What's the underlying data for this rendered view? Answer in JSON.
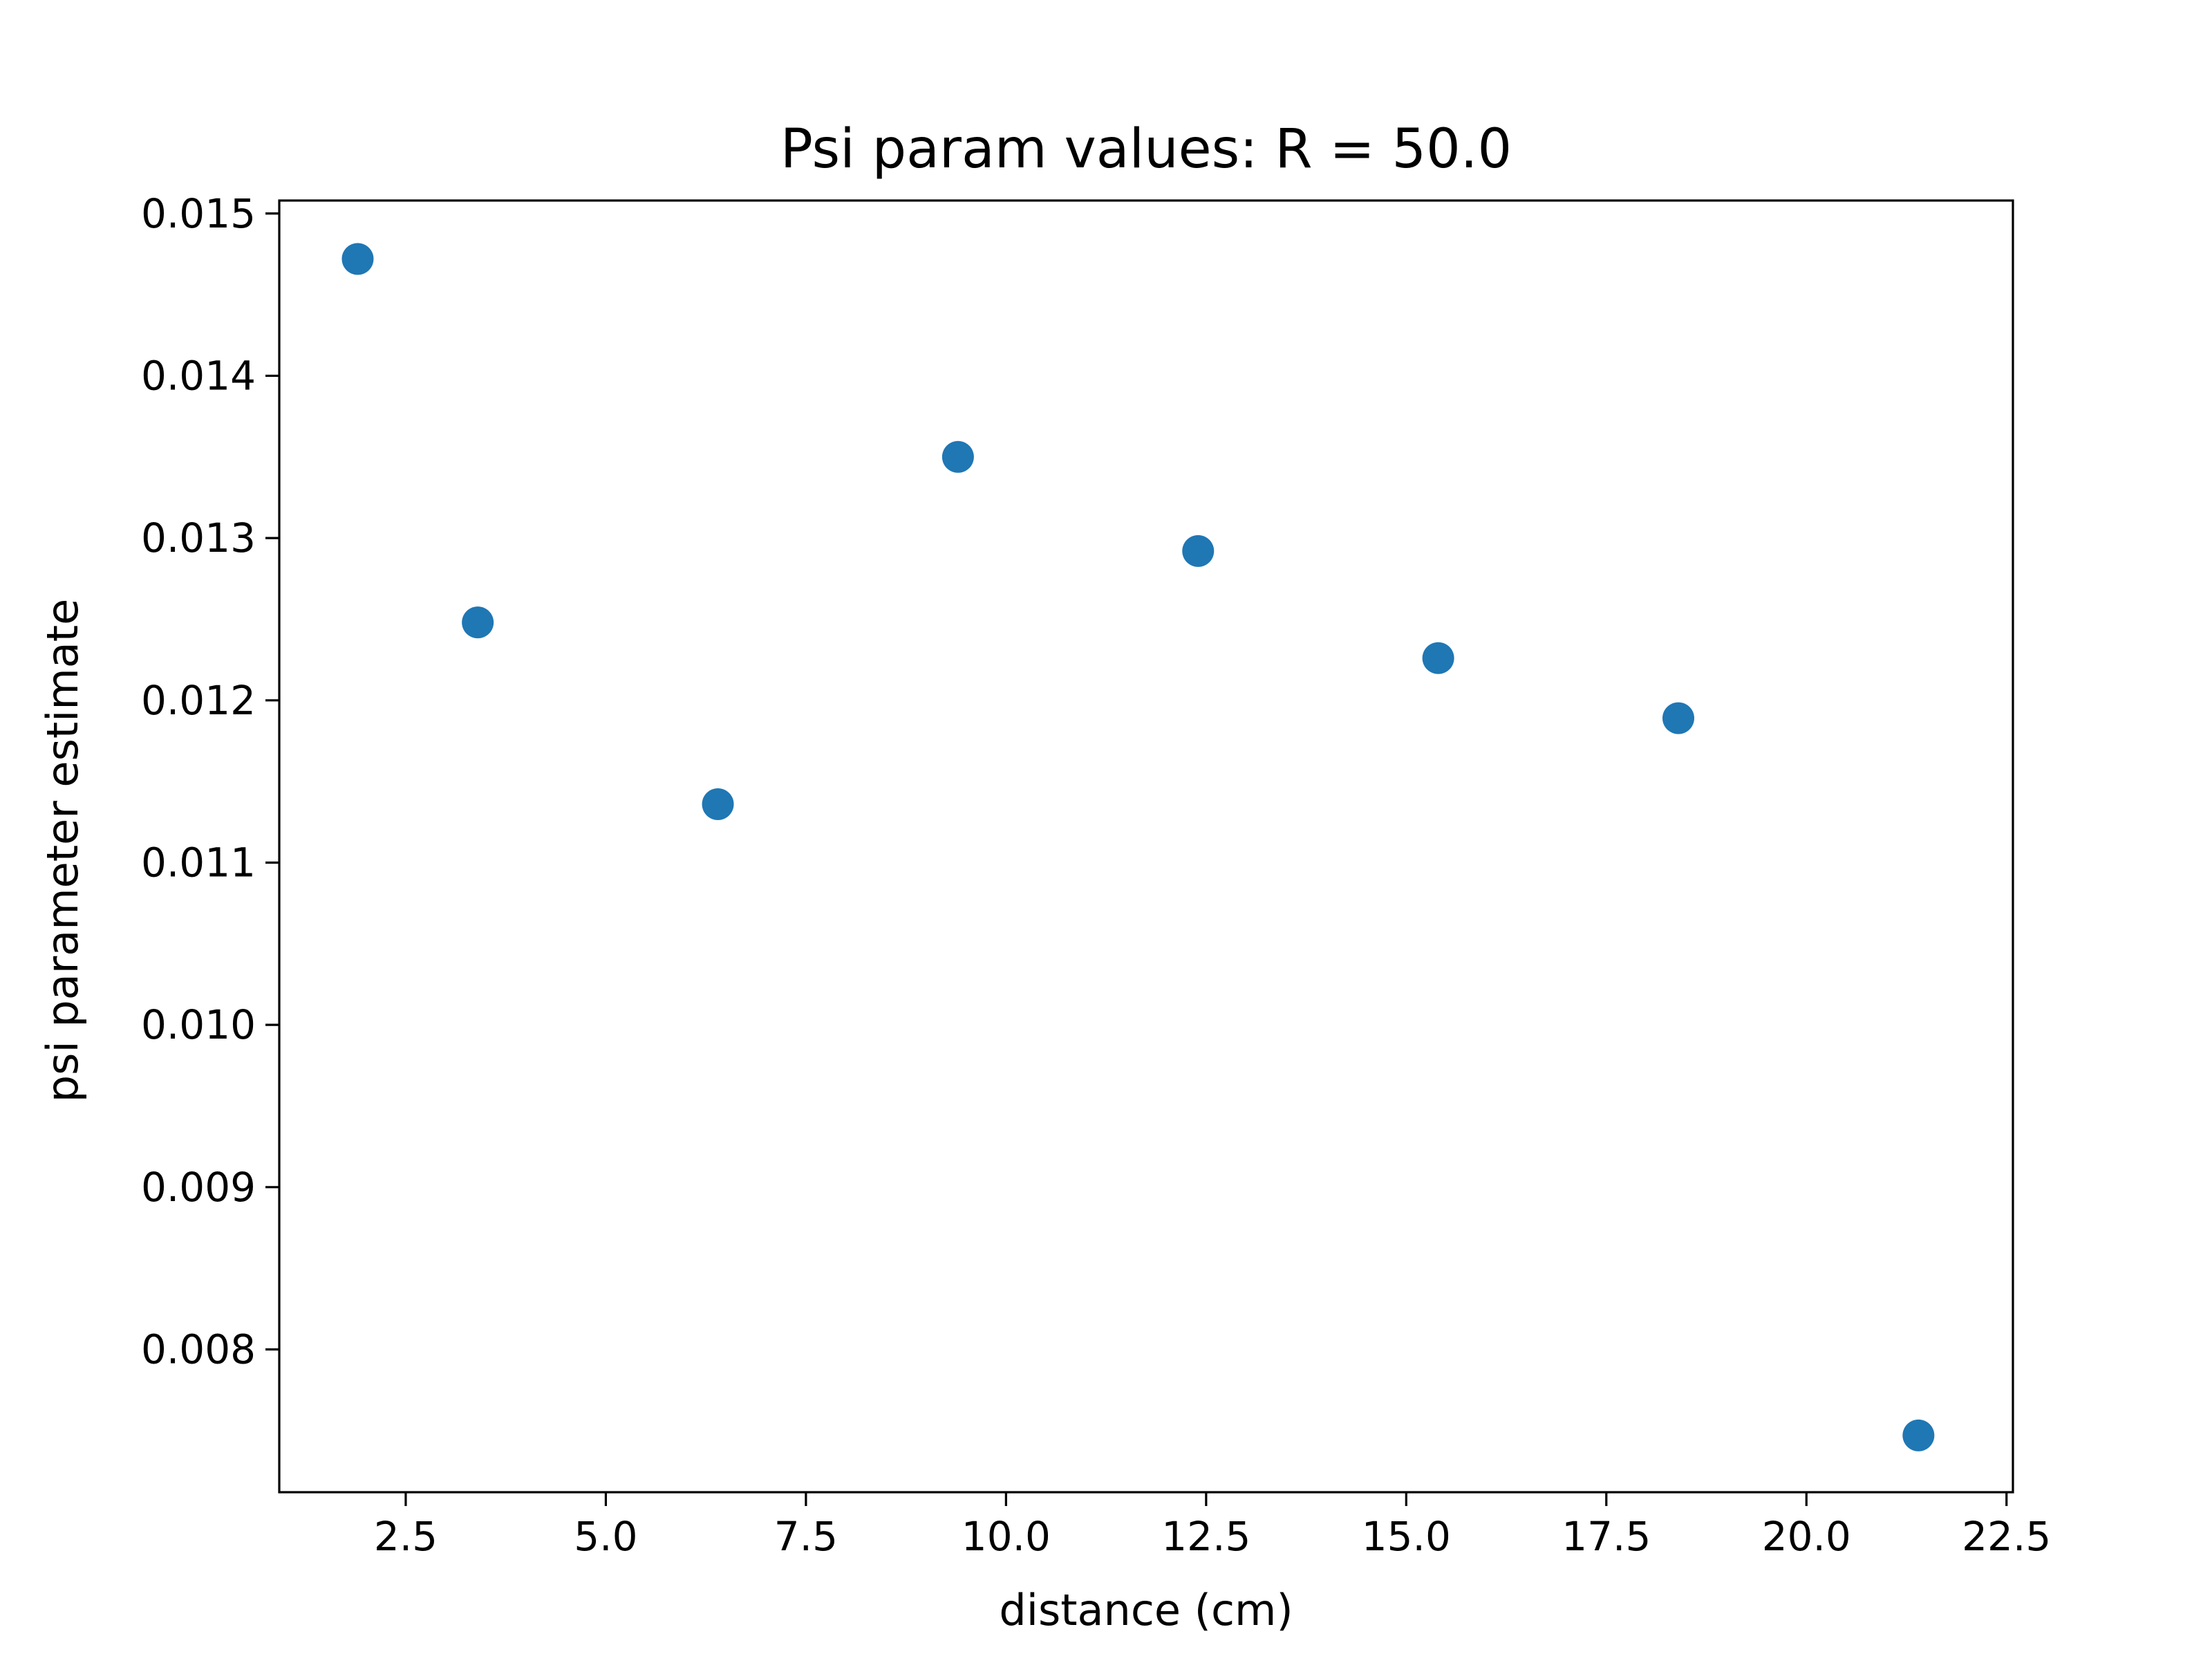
{
  "chart_data": {
    "type": "scatter",
    "title": "Psi param values: R = 50.0",
    "xlabel": "distance (cm)",
    "ylabel": "psi parameter estimate",
    "xlim": [
      0.92,
      22.58
    ],
    "ylim": [
      0.00712,
      0.01508
    ],
    "x_ticks": [
      2.5,
      5.0,
      7.5,
      10.0,
      12.5,
      15.0,
      17.5,
      20.0,
      22.5
    ],
    "x_tick_labels": [
      "2.5",
      "5.0",
      "7.5",
      "10.0",
      "12.5",
      "15.0",
      "17.5",
      "20.0",
      "22.5"
    ],
    "y_ticks": [
      0.008,
      0.009,
      0.01,
      0.011,
      0.012,
      0.013,
      0.014,
      0.015
    ],
    "y_tick_labels": [
      "0.008",
      "0.009",
      "0.010",
      "0.011",
      "0.012",
      "0.013",
      "0.014",
      "0.015"
    ],
    "grid": false,
    "legend": "none",
    "marker_color": "#1f77b4",
    "points": [
      {
        "x": 1.9,
        "y": 0.01472
      },
      {
        "x": 3.4,
        "y": 0.01248
      },
      {
        "x": 6.4,
        "y": 0.01136
      },
      {
        "x": 9.4,
        "y": 0.0135
      },
      {
        "x": 12.4,
        "y": 0.01292
      },
      {
        "x": 15.4,
        "y": 0.01226
      },
      {
        "x": 18.4,
        "y": 0.01189
      },
      {
        "x": 21.4,
        "y": 0.00747
      }
    ]
  }
}
